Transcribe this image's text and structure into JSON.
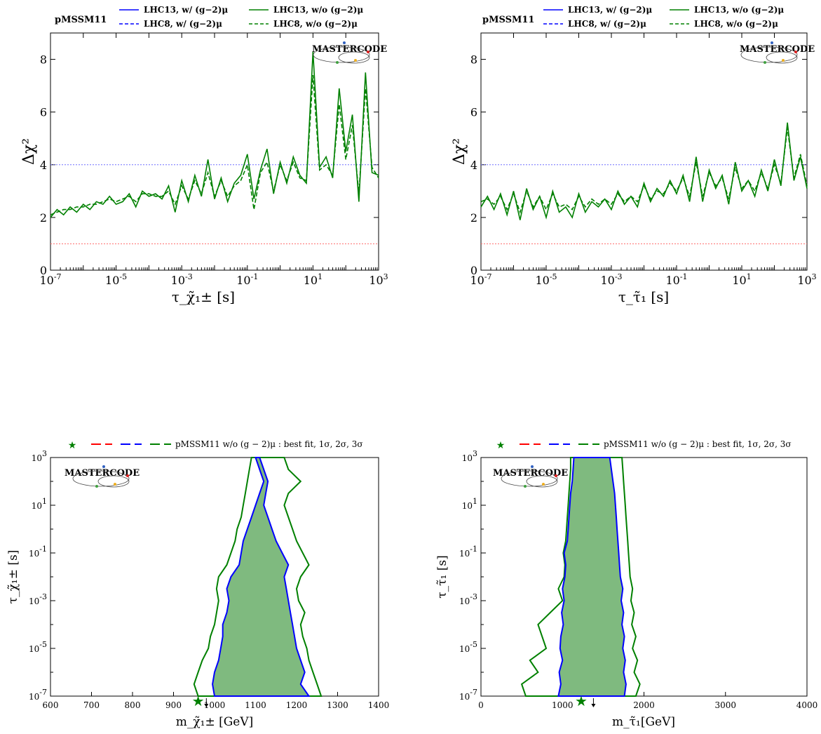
{
  "logo_text": "MASTERCODE",
  "colors": {
    "blue": "#0000ff",
    "green": "#008000",
    "red": "#ff0000",
    "ref_blue": "#6f6fff",
    "ref_red": "#ff6f6f"
  },
  "chart_data": [
    {
      "type": "line",
      "model_label": "pMSSM11",
      "xlabel": "τ_χ̃₁± [s]",
      "ylabel": "Δχ²",
      "xscale": "log",
      "xlim": [
        1e-07,
        1000
      ],
      "ylim": [
        0,
        9
      ],
      "xtick_exponents": [
        "-7",
        "-5",
        "-3",
        "-1",
        "1",
        "3"
      ],
      "yticks": [
        "0",
        "2",
        "4",
        "6",
        "8"
      ],
      "reference_lines": [
        1,
        4
      ],
      "legend": [
        "LHC13, w/ (g−2)μ",
        "LHC13, w/o (g−2)μ",
        "LHC8, w/ (g−2)μ",
        "LHC8, w/o (g−2)μ"
      ],
      "series": [
        {
          "name": "LHC13, w/o (g−2)μ",
          "style": "solid",
          "x_log10": [
            -7.0,
            -6.8,
            -6.6,
            -6.4,
            -6.2,
            -6.0,
            -5.8,
            -5.6,
            -5.4,
            -5.2,
            -5.0,
            -4.8,
            -4.6,
            -4.4,
            -4.2,
            -4.0,
            -3.8,
            -3.6,
            -3.4,
            -3.2,
            -3.0,
            -2.8,
            -2.6,
            -2.4,
            -2.2,
            -2.0,
            -1.8,
            -1.6,
            -1.4,
            -1.2,
            -1.0,
            -0.8,
            -0.6,
            -0.4,
            -0.2,
            0.0,
            0.2,
            0.4,
            0.6,
            0.8,
            1.0,
            1.2,
            1.4,
            1.6,
            1.8,
            2.0,
            2.2,
            2.4,
            2.6,
            2.8,
            3.0
          ],
          "values": [
            2.0,
            2.3,
            2.1,
            2.4,
            2.2,
            2.5,
            2.3,
            2.6,
            2.5,
            2.8,
            2.5,
            2.6,
            2.9,
            2.4,
            3.0,
            2.8,
            2.9,
            2.7,
            3.2,
            2.2,
            3.4,
            2.6,
            3.6,
            2.8,
            4.2,
            2.7,
            3.5,
            2.6,
            3.3,
            3.6,
            4.4,
            2.7,
            3.8,
            4.6,
            2.9,
            4.1,
            3.3,
            4.3,
            3.6,
            3.3,
            8.3,
            3.9,
            4.3,
            3.5,
            6.9,
            4.5,
            5.9,
            2.6,
            7.5,
            3.7,
            3.6
          ]
        },
        {
          "name": "LHC8, w/o (g−2)μ",
          "style": "dashed",
          "x_log10": [
            -7.0,
            -6.8,
            -6.6,
            -6.4,
            -6.2,
            -6.0,
            -5.8,
            -5.6,
            -5.4,
            -5.2,
            -5.0,
            -4.8,
            -4.6,
            -4.4,
            -4.2,
            -4.0,
            -3.8,
            -3.6,
            -3.4,
            -3.2,
            -3.0,
            -2.8,
            -2.6,
            -2.4,
            -2.2,
            -2.0,
            -1.8,
            -1.6,
            -1.4,
            -1.2,
            -1.0,
            -0.8,
            -0.6,
            -0.4,
            -0.2,
            0.0,
            0.2,
            0.4,
            0.6,
            0.8,
            1.0,
            1.2,
            1.4,
            1.6,
            1.8,
            2.0,
            2.2,
            2.4,
            2.6,
            2.8,
            3.0
          ],
          "values": [
            2.1,
            2.2,
            2.3,
            2.3,
            2.4,
            2.4,
            2.5,
            2.5,
            2.6,
            2.7,
            2.6,
            2.7,
            2.8,
            2.6,
            2.9,
            2.9,
            2.8,
            2.8,
            3.0,
            2.5,
            3.2,
            2.7,
            3.4,
            2.9,
            3.7,
            2.8,
            3.4,
            2.8,
            3.2,
            3.4,
            4.0,
            2.3,
            3.7,
            4.1,
            3.0,
            4.0,
            3.4,
            4.1,
            3.5,
            3.4,
            7.4,
            3.8,
            4.0,
            3.6,
            6.3,
            4.2,
            5.5,
            2.9,
            6.9,
            3.9,
            3.5
          ]
        }
      ]
    },
    {
      "type": "line",
      "model_label": "pMSSM11",
      "xlabel": "τ_τ̃₁ [s]",
      "ylabel": "Δχ²",
      "xscale": "log",
      "xlim": [
        1e-07,
        1000
      ],
      "ylim": [
        0,
        9
      ],
      "xtick_exponents": [
        "-7",
        "-5",
        "-3",
        "-1",
        "1",
        "3"
      ],
      "yticks": [
        "0",
        "2",
        "4",
        "6",
        "8"
      ],
      "reference_lines": [
        1,
        4
      ],
      "legend": [
        "LHC13, w/ (g−2)μ",
        "LHC13, w/o (g−2)μ",
        "LHC8, w/ (g−2)μ",
        "LHC8, w/o (g−2)μ"
      ],
      "series": [
        {
          "name": "LHC13, w/o (g−2)μ",
          "style": "solid",
          "x_log10": [
            -7.0,
            -6.8,
            -6.6,
            -6.4,
            -6.2,
            -6.0,
            -5.8,
            -5.6,
            -5.4,
            -5.2,
            -5.0,
            -4.8,
            -4.6,
            -4.4,
            -4.2,
            -4.0,
            -3.8,
            -3.6,
            -3.4,
            -3.2,
            -3.0,
            -2.8,
            -2.6,
            -2.4,
            -2.2,
            -2.0,
            -1.8,
            -1.6,
            -1.4,
            -1.2,
            -1.0,
            -0.8,
            -0.6,
            -0.4,
            -0.2,
            0.0,
            0.2,
            0.4,
            0.6,
            0.8,
            1.0,
            1.2,
            1.4,
            1.6,
            1.8,
            2.0,
            2.2,
            2.4,
            2.6,
            2.8,
            3.0
          ],
          "values": [
            2.4,
            2.8,
            2.3,
            2.9,
            2.1,
            3.0,
            1.9,
            3.1,
            2.3,
            2.8,
            2.0,
            3.0,
            2.2,
            2.4,
            2.0,
            2.9,
            2.2,
            2.6,
            2.4,
            2.7,
            2.3,
            3.0,
            2.5,
            2.8,
            2.4,
            3.3,
            2.6,
            3.1,
            2.8,
            3.4,
            2.9,
            3.6,
            2.6,
            4.3,
            2.6,
            3.8,
            3.1,
            3.6,
            2.5,
            4.1,
            3.0,
            3.4,
            2.8,
            3.8,
            3.0,
            4.2,
            3.2,
            5.6,
            3.4,
            4.3,
            3.1
          ]
        },
        {
          "name": "LHC8, w/o (g−2)μ",
          "style": "dashed",
          "x_log10": [
            -7.0,
            -6.8,
            -6.6,
            -6.4,
            -6.2,
            -6.0,
            -5.8,
            -5.6,
            -5.4,
            -5.2,
            -5.0,
            -4.8,
            -4.6,
            -4.4,
            -4.2,
            -4.0,
            -3.8,
            -3.6,
            -3.4,
            -3.2,
            -3.0,
            -2.8,
            -2.6,
            -2.4,
            -2.2,
            -2.0,
            -1.8,
            -1.6,
            -1.4,
            -1.2,
            -1.0,
            -0.8,
            -0.6,
            -0.4,
            -0.2,
            0.0,
            0.2,
            0.4,
            0.6,
            0.8,
            1.0,
            1.2,
            1.4,
            1.6,
            1.8,
            2.0,
            2.2,
            2.4,
            2.6,
            2.8,
            3.0
          ],
          "values": [
            2.6,
            2.7,
            2.5,
            2.8,
            2.3,
            2.9,
            2.2,
            3.0,
            2.4,
            2.8,
            2.3,
            2.9,
            2.4,
            2.5,
            2.3,
            2.8,
            2.4,
            2.7,
            2.5,
            2.7,
            2.5,
            2.9,
            2.6,
            2.8,
            2.6,
            3.2,
            2.7,
            3.0,
            2.9,
            3.3,
            3.0,
            3.5,
            2.8,
            4.1,
            2.8,
            3.7,
            3.2,
            3.5,
            2.7,
            3.9,
            3.1,
            3.4,
            3.0,
            3.7,
            3.1,
            4.0,
            3.3,
            5.4,
            3.5,
            4.4,
            3.2
          ]
        }
      ]
    },
    {
      "type": "contour",
      "legend": "pMSSM11  w/o (g − 2)μ :  best fit, 1σ, 2σ, 3σ",
      "xlabel": "m_χ̃₁± [GeV]",
      "ylabel": "τ_χ̃₁± [s]",
      "xlim": [
        600,
        1400
      ],
      "xticks": [
        "600",
        "700",
        "800",
        "900",
        "1000",
        "1100",
        "1200",
        "1300",
        "1400"
      ],
      "yscale": "log",
      "ylim": [
        1e-07,
        1000
      ],
      "ytick_exponents": [
        "-7",
        "-5",
        "-3",
        "-1",
        "1",
        "3"
      ],
      "best_fit": {
        "x": 960,
        "y_log10": -7
      },
      "arrow_x": 980,
      "contour_2sigma": {
        "y_log10": [
          -7.0,
          -6.5,
          -6.0,
          -5.5,
          -5.0,
          -4.5,
          -4.0,
          -3.5,
          -3.0,
          -2.5,
          -2.0,
          -1.5,
          -1.0,
          -0.5,
          0.0,
          0.5,
          1.0,
          1.5,
          2.0,
          2.5,
          3.0
        ],
        "x_left": [
          1000,
          995,
          1000,
          1010,
          1015,
          1020,
          1020,
          1030,
          1035,
          1030,
          1040,
          1060,
          1065,
          1070,
          1080,
          1090,
          1100,
          1110,
          1120,
          1110,
          1100
        ],
        "x_right": [
          1230,
          1210,
          1220,
          1210,
          1200,
          1195,
          1190,
          1185,
          1180,
          1175,
          1170,
          1180,
          1165,
          1150,
          1140,
          1130,
          1120,
          1125,
          1130,
          1120,
          1110
        ]
      },
      "contour_3sigma": {
        "y_log10": [
          -7.0,
          -6.5,
          -6.0,
          -5.5,
          -5.0,
          -4.5,
          -4.0,
          -3.5,
          -3.0,
          -2.5,
          -2.0,
          -1.5,
          -1.0,
          -0.5,
          0.0,
          0.5,
          1.0,
          1.5,
          2.0,
          2.5,
          3.0
        ],
        "x_left": [
          960,
          950,
          960,
          970,
          985,
          990,
          1000,
          1005,
          1010,
          1005,
          1010,
          1030,
          1040,
          1050,
          1055,
          1065,
          1070,
          1075,
          1080,
          1085,
          1090
        ],
        "x_right": [
          1260,
          1250,
          1240,
          1230,
          1225,
          1215,
          1210,
          1220,
          1205,
          1200,
          1210,
          1230,
          1215,
          1200,
          1190,
          1180,
          1170,
          1180,
          1210,
          1180,
          1170
        ]
      }
    },
    {
      "type": "contour",
      "legend": "pMSSM11  w/o (g − 2)μ :  best fit, 1σ, 2σ, 3σ",
      "xlabel": "m_τ̃₁[GeV]",
      "ylabel": "τ_τ̃₁ [s]",
      "xlim": [
        0,
        4000
      ],
      "xticks": [
        "0",
        "1000",
        "2000",
        "3000",
        "4000"
      ],
      "yscale": "log",
      "ylim": [
        1e-07,
        1000
      ],
      "ytick_exponents": [
        "-7",
        "-5",
        "-3",
        "-1",
        "1",
        "3"
      ],
      "best_fit": {
        "x": 1230,
        "y_log10": -7
      },
      "arrow_x": 1380,
      "contour_2sigma": {
        "y_log10": [
          -7.0,
          -6.5,
          -6.0,
          -5.5,
          -5.0,
          -4.5,
          -4.0,
          -3.5,
          -3.0,
          -2.5,
          -2.0,
          -1.5,
          -1.0,
          -0.5,
          0.0,
          0.5,
          1.0,
          1.5,
          2.0,
          2.5,
          3.0
        ],
        "x_left": [
          950,
          980,
          960,
          1000,
          970,
          980,
          1010,
          990,
          1020,
          1000,
          1030,
          1040,
          1020,
          1060,
          1070,
          1080,
          1090,
          1100,
          1120,
          1130,
          1140
        ],
        "x_right": [
          1760,
          1780,
          1750,
          1770,
          1740,
          1760,
          1730,
          1750,
          1720,
          1740,
          1710,
          1700,
          1690,
          1680,
          1670,
          1660,
          1650,
          1640,
          1620,
          1600,
          1580
        ]
      },
      "contour_3sigma": {
        "y_log10": [
          -7.0,
          -6.5,
          -6.0,
          -5.5,
          -5.0,
          -4.5,
          -4.0,
          -3.5,
          -3.0,
          -2.5,
          -2.0,
          -1.5,
          -1.0,
          -0.5,
          0.0,
          0.5,
          1.0,
          1.5,
          2.0,
          2.5,
          3.0
        ],
        "x_left": [
          550,
          500,
          700,
          600,
          800,
          750,
          700,
          850,
          1000,
          950,
          1020,
          1030,
          1010,
          1040,
          1050,
          1060,
          1070,
          1080,
          1090,
          1100,
          1100
        ],
        "x_right": [
          1900,
          1950,
          1880,
          1920,
          1860,
          1900,
          1850,
          1880,
          1840,
          1860,
          1830,
          1820,
          1810,
          1800,
          1790,
          1780,
          1770,
          1760,
          1750,
          1740,
          1730
        ]
      }
    }
  ]
}
